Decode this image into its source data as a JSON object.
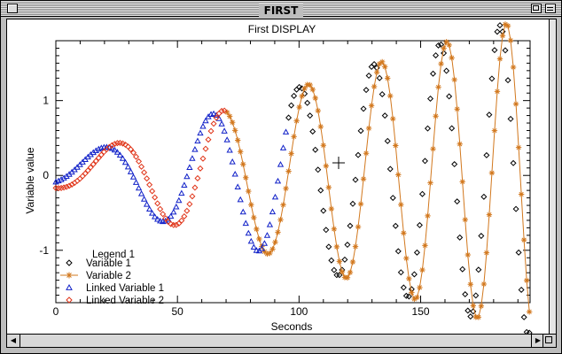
{
  "window": {
    "title": "FIRST"
  },
  "chart_data": {
    "type": "line",
    "title": "First DISPLAY",
    "xlabel": "Seconds",
    "ylabel": "Variable value",
    "xlim": [
      0,
      195
    ],
    "ylim": [
      -1.7,
      1.8
    ],
    "xticks": [
      0,
      50,
      100,
      150
    ],
    "yticks": [
      -1,
      0,
      1
    ],
    "grid": false,
    "legend": {
      "title": "Legend 1",
      "placement": "bottom-left",
      "entries": [
        "Variable 1",
        "Variable 2",
        "Linked Variable 1",
        "Linked Variable 2"
      ]
    },
    "series": [
      {
        "name": "Variable 1",
        "marker": "diamond",
        "color": "#000000",
        "x": [],
        "y": []
      },
      {
        "name": "Variable 2",
        "marker": "star",
        "color": "#d2781e",
        "x": [],
        "y": []
      },
      {
        "name": "Linked Variable 1",
        "marker": "triangle",
        "color": "#1020c8",
        "x": [],
        "y": []
      },
      {
        "name": "Linked Variable 2",
        "marker": "diamond",
        "color": "#e03418",
        "x": [],
        "y": []
      }
    ]
  }
}
